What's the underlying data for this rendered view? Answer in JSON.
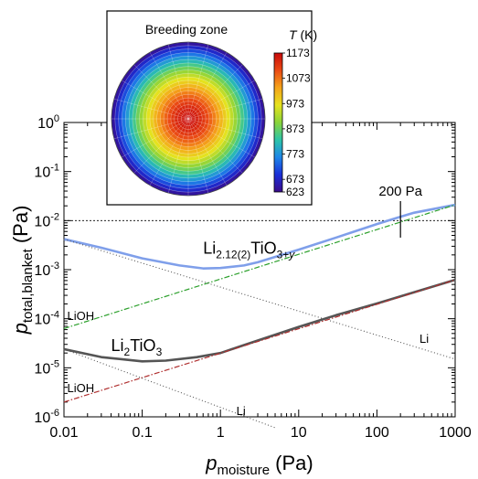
{
  "chart_data": [
    {
      "type": "line",
      "x_scale": "log",
      "y_scale": "log",
      "xlim": [
        0.01,
        1000
      ],
      "ylim": [
        1e-06,
        1
      ],
      "x_ticks": [
        {
          "value": 0.01,
          "label": "0.01"
        },
        {
          "value": 0.1,
          "label": "0.1"
        },
        {
          "value": 1,
          "label": "1"
        },
        {
          "value": 10,
          "label": "10"
        },
        {
          "value": 100,
          "label": "100"
        },
        {
          "value": 1000,
          "label": "1000"
        }
      ],
      "y_ticks": [
        {
          "value": 1,
          "base": "10",
          "exp": "0"
        },
        {
          "value": 0.1,
          "base": "10",
          "exp": "-1"
        },
        {
          "value": 0.01,
          "base": "10",
          "exp": "-2"
        },
        {
          "value": 0.001,
          "base": "10",
          "exp": "-3"
        },
        {
          "value": 0.0001,
          "base": "10",
          "exp": "-4"
        },
        {
          "value": 1e-05,
          "base": "10",
          "exp": "-5"
        },
        {
          "value": 1e-06,
          "base": "10",
          "exp": "-6"
        }
      ],
      "xlabel": {
        "main": "p",
        "sub": "moisture",
        "unit": "(Pa)"
      },
      "ylabel": {
        "main": "p",
        "sub": "total,blanket",
        "unit": "(Pa)"
      },
      "grid": false,
      "series": [
        {
          "key": "li2p12_total",
          "style": "solid",
          "color": "#7f9fea",
          "x": [
            0.01,
            0.03,
            0.1,
            0.3,
            0.6,
            1,
            2,
            3,
            10,
            30,
            100,
            200,
            300,
            1000
          ],
          "y": [
            0.0042,
            0.0028,
            0.0017,
            0.00122,
            0.00106,
            0.00108,
            0.00122,
            0.00142,
            0.00255,
            0.0045,
            0.0085,
            0.012,
            0.0145,
            0.021
          ]
        },
        {
          "key": "li2p12_lioh",
          "style": "dashdot",
          "color": "#2ca02c",
          "x": [
            0.01,
            1000
          ],
          "y": [
            6.3e-05,
            0.021
          ]
        },
        {
          "key": "li2p12_li",
          "style": "dotted",
          "color": "#555555",
          "x": [
            0.01,
            1000
          ],
          "y": [
            0.0042,
            1.5e-05
          ]
        },
        {
          "key": "li2_total",
          "style": "solid",
          "color": "#555555",
          "x": [
            0.01,
            0.03,
            0.1,
            0.2,
            0.5,
            1,
            2,
            3,
            10,
            30,
            100,
            1000
          ],
          "y": [
            2.4e-05,
            1.65e-05,
            1.35e-05,
            1.4e-05,
            1.65e-05,
            2e-05,
            2.9e-05,
            3.6e-05,
            6.8e-05,
            0.000118,
            0.000205,
            0.00062
          ]
        },
        {
          "key": "li2_lioh",
          "style": "dashdot",
          "color": "#b03030",
          "x": [
            0.01,
            1000
          ],
          "y": [
            2e-06,
            0.00062
          ]
        },
        {
          "key": "li2_li",
          "style": "dotted",
          "color": "#555555",
          "x": [
            0.01,
            5
          ],
          "y": [
            2.4e-05,
            6e-07
          ]
        }
      ],
      "reference_line": {
        "y": 0.01,
        "style": "dashed"
      },
      "marker": {
        "x": 200,
        "label": "200 Pa",
        "y_range": [
          0.0045,
          0.025
        ]
      },
      "curve_labels": [
        {
          "key": "li2p12_formula",
          "parts": [
            {
              "t": "Li",
              "k": "n"
            },
            {
              "t": "2.12(2)",
              "k": "sub"
            },
            {
              "t": "TiO",
              "k": "n"
            },
            {
              "t": "3+",
              "k": "sub"
            },
            {
              "t": "y",
              "k": "subi"
            }
          ],
          "x": 0.6,
          "y": 0.0021
        },
        {
          "key": "li2_formula",
          "parts": [
            {
              "t": "Li",
              "k": "n"
            },
            {
              "t": "2",
              "k": "sub"
            },
            {
              "t": "TiO",
              "k": "n"
            },
            {
              "t": "3",
              "k": "sub"
            }
          ],
          "x": 0.04,
          "y": 2.2e-05
        },
        {
          "key": "lioh_upper",
          "parts": [
            {
              "t": "LiOH",
              "k": "n"
            }
          ],
          "x": 0.011,
          "y": 9.5e-05
        },
        {
          "key": "lioh_lower",
          "parts": [
            {
              "t": "LiOH",
              "k": "n"
            }
          ],
          "x": 0.011,
          "y": 3.2e-06
        },
        {
          "key": "li_upper",
          "parts": [
            {
              "t": "Li",
              "k": "n"
            }
          ],
          "x": 350,
          "y": 3.2e-05
        },
        {
          "key": "li_lower",
          "parts": [
            {
              "t": "Li",
              "k": "n"
            }
          ],
          "x": 1.6,
          "y": 1.1e-06
        }
      ]
    },
    {
      "type": "heatmap",
      "title": "Breeding zone",
      "colorbar": {
        "label_var": "T",
        "label_unit": "(K)",
        "range": [
          623,
          1173
        ],
        "ticks": [
          "1173",
          "1073",
          "973",
          "873",
          "773",
          "673",
          "623"
        ],
        "tick_values": [
          1173,
          1073,
          973,
          873,
          773,
          673,
          623
        ],
        "colors": [
          "#3a0a8a",
          "#1a2fd8",
          "#1e86e8",
          "#2cc4a8",
          "#8ad43a",
          "#e6e21e",
          "#f5a41a",
          "#ea4a14",
          "#c90a0a"
        ]
      },
      "field": {
        "center_value": 1173,
        "edge_value": 623,
        "ring_count": 22
      }
    }
  ]
}
